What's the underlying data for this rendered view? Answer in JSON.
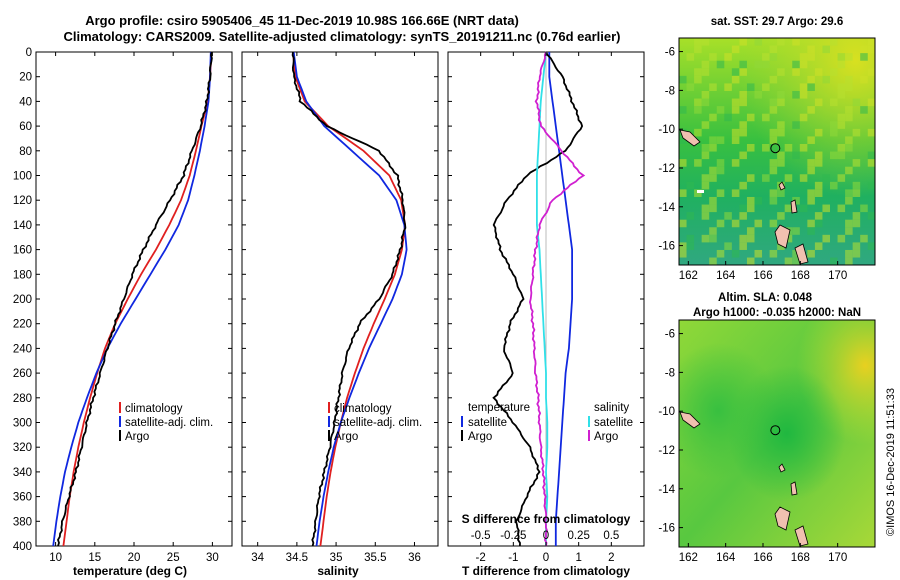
{
  "header": {
    "title_line1": "Argo profile: csiro 5905406_45 11-Dec-2019 10.98S 166.66E (NRT data)",
    "title_line2": "Climatology: CARS2009. Satellite-adjusted climatology: synTS_20191211.nc (0.76d earlier)"
  },
  "footer": {
    "stamp": "©IMOS 16-Dec-2019 11:51:33"
  },
  "colors": {
    "climatology": "#e02020",
    "satellite_adj": "#1028e0",
    "argo": "#000000",
    "satellite": "#1028e0",
    "sal_satellite": "#30e0e8",
    "sal_argo": "#d020d0"
  },
  "depth_axis": {
    "ticks": [
      "0",
      "20",
      "40",
      "60",
      "80",
      "100",
      "120",
      "140",
      "160",
      "180",
      "200",
      "220",
      "240",
      "260",
      "280",
      "300",
      "320",
      "340",
      "360",
      "380",
      "400"
    ]
  },
  "chart_data": [
    {
      "type": "line",
      "name": "temperature",
      "xlabel": "temperature (deg C)",
      "xlim": [
        7.5,
        32.5
      ],
      "ylim": [
        400,
        0
      ],
      "xticks": [
        "10",
        "15",
        "20",
        "25",
        "30"
      ],
      "legend": [
        "climatology",
        "satellite-adj. clim.",
        "Argo"
      ],
      "series": [
        {
          "name": "climatology",
          "depth": [
            0,
            20,
            40,
            60,
            80,
            100,
            120,
            140,
            160,
            180,
            200,
            220,
            240,
            260,
            280,
            300,
            320,
            340,
            360,
            380,
            400
          ],
          "values": [
            29.9,
            29.7,
            29.4,
            28.6,
            27.9,
            27.1,
            26.0,
            24.5,
            22.8,
            20.9,
            19.2,
            17.6,
            16.3,
            15.3,
            14.4,
            13.6,
            12.9,
            12.3,
            11.8,
            11.4,
            11.0
          ]
        },
        {
          "name": "satellite-adj. clim.",
          "depth": [
            0,
            20,
            40,
            60,
            80,
            100,
            120,
            140,
            160,
            180,
            200,
            220,
            240,
            260,
            280,
            300,
            320,
            340,
            360,
            380,
            400
          ],
          "values": [
            29.8,
            29.7,
            29.5,
            29.0,
            28.4,
            27.7,
            26.9,
            25.7,
            24.0,
            22.1,
            20.2,
            18.3,
            16.6,
            15.2,
            14.0,
            12.9,
            12.0,
            11.2,
            10.6,
            10.1,
            9.7
          ]
        },
        {
          "name": "Argo",
          "depth": [
            0,
            20,
            40,
            60,
            80,
            100,
            120,
            140,
            160,
            180,
            200,
            220,
            240,
            260,
            280,
            300,
            320,
            340,
            360,
            380,
            400
          ],
          "values": [
            29.9,
            29.7,
            29.3,
            28.5,
            27.4,
            26.3,
            24.6,
            22.8,
            21.2,
            19.8,
            18.7,
            17.6,
            16.6,
            15.7,
            14.8,
            14.0,
            13.3,
            12.6,
            11.7,
            10.9,
            10.3
          ]
        }
      ]
    },
    {
      "type": "line",
      "name": "salinity",
      "xlabel": "salinity",
      "xlim": [
        33.8,
        36.3
      ],
      "ylim": [
        400,
        0
      ],
      "xticks": [
        "34",
        "34.5",
        "35",
        "35.5",
        "36"
      ],
      "legend": [
        "climatology",
        "satellite-adj. clim.",
        "Argo"
      ],
      "series": [
        {
          "name": "climatology",
          "depth": [
            0,
            20,
            40,
            60,
            80,
            100,
            120,
            140,
            160,
            180,
            200,
            220,
            240,
            260,
            280,
            300,
            320,
            340,
            360,
            380,
            400
          ],
          "values": [
            34.45,
            34.48,
            34.6,
            34.9,
            35.35,
            35.68,
            35.83,
            35.88,
            35.84,
            35.75,
            35.62,
            35.48,
            35.35,
            35.24,
            35.14,
            35.06,
            34.99,
            34.93,
            34.88,
            34.84,
            34.8
          ]
        },
        {
          "name": "satellite-adj. clim.",
          "depth": [
            0,
            20,
            40,
            60,
            80,
            100,
            120,
            140,
            160,
            180,
            200,
            220,
            240,
            260,
            280,
            300,
            320,
            340,
            360,
            380,
            400
          ],
          "values": [
            34.46,
            34.5,
            34.62,
            34.85,
            35.2,
            35.55,
            35.77,
            35.87,
            35.9,
            35.84,
            35.72,
            35.57,
            35.42,
            35.29,
            35.17,
            35.06,
            34.97,
            34.9,
            34.84,
            34.79,
            34.75
          ]
        },
        {
          "name": "Argo",
          "depth": [
            0,
            20,
            40,
            60,
            80,
            100,
            120,
            140,
            160,
            180,
            200,
            220,
            240,
            260,
            280,
            300,
            320,
            340,
            360,
            380,
            400
          ],
          "values": [
            34.45,
            34.46,
            34.55,
            34.88,
            35.55,
            35.78,
            35.85,
            35.88,
            35.82,
            35.72,
            35.55,
            35.3,
            35.16,
            35.08,
            35.03,
            34.98,
            34.92,
            34.85,
            34.78,
            34.74,
            34.7
          ]
        }
      ]
    },
    {
      "type": "line",
      "name": "difference from climatology",
      "xlabel": "T difference from climatology",
      "xlabel_top": "S difference from climatology",
      "xlim": [
        -3,
        3
      ],
      "s_xlim": [
        -0.75,
        0.75
      ],
      "ylim": [
        400,
        0
      ],
      "xticks": [
        "-2",
        "-1",
        "0",
        "1",
        "2"
      ],
      "s_xticks": [
        "-0.5",
        "-0.25",
        "0",
        "0.25",
        "0.5"
      ],
      "legend_temperature": {
        "title": "temperature",
        "items": [
          "satellite",
          "Argo"
        ]
      },
      "legend_salinity": {
        "title": "salinity",
        "items": [
          "satellite",
          "Argo"
        ]
      },
      "series": [
        {
          "name": "temperature satellite",
          "axis": "T",
          "depth": [
            0,
            20,
            40,
            60,
            80,
            100,
            120,
            140,
            160,
            180,
            200,
            220,
            240,
            260,
            280,
            300,
            320,
            340,
            360,
            380,
            400
          ],
          "values": [
            0.1,
            0.1,
            0.2,
            0.3,
            0.4,
            0.5,
            0.6,
            0.7,
            0.8,
            0.8,
            0.8,
            0.75,
            0.7,
            0.6,
            0.55,
            0.5,
            0.45,
            0.4,
            0.35,
            0.3,
            0.3
          ]
        },
        {
          "name": "temperature Argo",
          "axis": "T",
          "depth": [
            0,
            20,
            40,
            60,
            80,
            100,
            120,
            140,
            160,
            180,
            200,
            220,
            240,
            260,
            280,
            300,
            320,
            340,
            360,
            380,
            400
          ],
          "values": [
            0.0,
            0.5,
            0.8,
            1.1,
            0.6,
            -0.6,
            -1.2,
            -1.6,
            -1.4,
            -1.0,
            -0.7,
            -1.1,
            -1.3,
            -1.0,
            -1.6,
            -1.0,
            -0.5,
            -0.2,
            -0.6,
            -0.9,
            -0.8
          ]
        },
        {
          "name": "salinity satellite",
          "axis": "S",
          "depth": [
            0,
            20,
            40,
            60,
            80,
            100,
            120,
            140,
            160,
            180,
            200,
            220,
            240,
            260,
            280,
            300,
            320,
            340,
            360,
            380,
            400
          ],
          "values": [
            0.0,
            -0.02,
            -0.04,
            -0.05,
            -0.06,
            -0.07,
            -0.07,
            -0.07,
            -0.05,
            -0.04,
            -0.03,
            -0.02,
            -0.01,
            0.0,
            0.0,
            0.01,
            0.01,
            0.0,
            0.01,
            0.0,
            0.0
          ]
        },
        {
          "name": "salinity Argo",
          "axis": "S",
          "depth": [
            0,
            20,
            40,
            60,
            80,
            100,
            120,
            140,
            160,
            180,
            200,
            220,
            240,
            260,
            280,
            300,
            320,
            340,
            360,
            380,
            400
          ],
          "values": [
            0.0,
            -0.05,
            -0.07,
            -0.04,
            0.12,
            0.28,
            0.05,
            -0.05,
            -0.08,
            -0.1,
            -0.12,
            -0.1,
            -0.09,
            -0.08,
            -0.06,
            -0.05,
            -0.04,
            -0.02,
            -0.01,
            0.0,
            0.0
          ]
        }
      ]
    },
    {
      "type": "heatmap",
      "name": "sst map",
      "title": "sat. SST: 29.7 Argo: 29.6",
      "xticks": [
        "162",
        "164",
        "166",
        "168",
        "170"
      ],
      "yticks": [
        "-6",
        "-8",
        "-10",
        "-12",
        "-14",
        "-16"
      ],
      "xlim": [
        161.5,
        172
      ],
      "ylim": [
        -17,
        -5.3
      ],
      "argo_position": [
        166.66,
        -10.98
      ]
    },
    {
      "type": "heatmap",
      "name": "sla map",
      "title": "Altim. SLA: 0.048",
      "subtitle": "Argo h1000: -0.035 h2000: NaN",
      "xticks": [
        "162",
        "164",
        "166",
        "168",
        "170"
      ],
      "yticks": [
        "-6",
        "-8",
        "-10",
        "-12",
        "-14",
        "-16"
      ],
      "xlim": [
        161.5,
        172
      ],
      "ylim": [
        -17,
        -5.3
      ],
      "argo_position": [
        166.66,
        -10.98
      ]
    }
  ]
}
